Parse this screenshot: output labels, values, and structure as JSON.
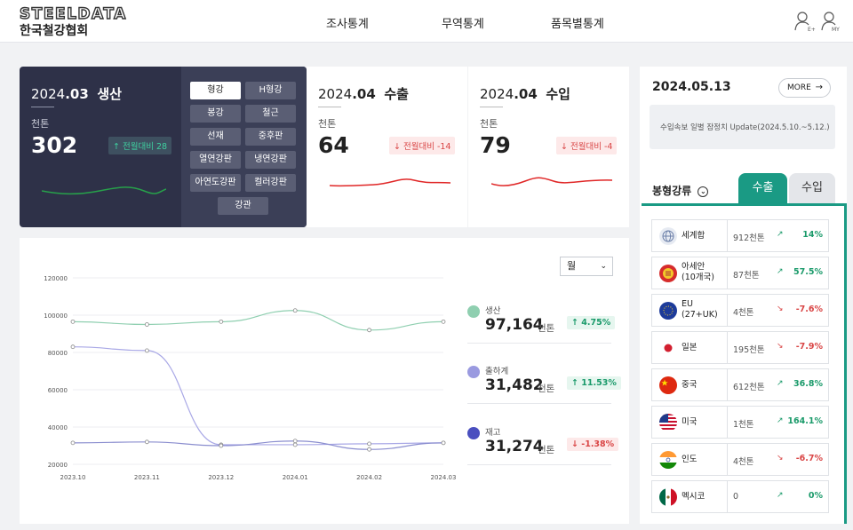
{
  "header": {
    "logo_title": "STEELDATA",
    "logo_subtitle": "한국철강협회",
    "nav": [
      "조사통계",
      "무역통계",
      "품목별통계"
    ],
    "icon_names": [
      "user-login-icon",
      "user-my-icon"
    ],
    "icon_labels": [
      "E+",
      "MY"
    ]
  },
  "production": {
    "period": "2024",
    "month": ".03",
    "label": "생산",
    "unit": "천톤",
    "value": "302",
    "delta": "↑ 전월대비 28",
    "chips": [
      "형강",
      "H형강",
      "봉강",
      "철근",
      "선재",
      "중후판",
      "열연강판",
      "냉연강판",
      "아연도강판",
      "컬러강판",
      "강관"
    ],
    "active_chip": "형강"
  },
  "export": {
    "period": "2024",
    "month": ".04",
    "label": "수출",
    "unit": "천톤",
    "value": "64",
    "delta": "↓ 전월대비 -14"
  },
  "import": {
    "period": "2024",
    "month": ".04",
    "label": "수입",
    "unit": "천톤",
    "value": "79",
    "delta": "↓ 전월대비 -4"
  },
  "chart_select": "월",
  "chart_data": {
    "type": "line",
    "x": [
      "2023.10",
      "2023.11",
      "2023.12",
      "2024.01",
      "2024.02",
      "2024.03"
    ],
    "ylim": [
      20000,
      120000
    ],
    "yticks": [
      "120000",
      "100000",
      "80000",
      "60000",
      "40000",
      "20000"
    ],
    "series": [
      {
        "name": "생산",
        "color": "#8fcfb0",
        "values": [
          96500,
          95000,
          96500,
          102500,
          92000,
          96500
        ]
      },
      {
        "name": "출하계",
        "color": "#a9a8e6",
        "values": [
          83000,
          81000,
          30500,
          30500,
          31000,
          31500
        ]
      },
      {
        "name": "재고",
        "color": "#8b8ecf",
        "values": [
          31500,
          32000,
          30000,
          32500,
          28000,
          31500
        ]
      }
    ]
  },
  "legend": [
    {
      "name": "생산",
      "value": "97,164",
      "unit": "천톤",
      "delta": "↑ 4.75%",
      "dir": "up",
      "color": "#8fcfb0"
    },
    {
      "name": "출하계",
      "value": "31,482",
      "unit": "천톤",
      "delta": "↑ 11.53%",
      "dir": "up",
      "color": "#9a9ae0"
    },
    {
      "name": "재고",
      "value": "31,274",
      "unit": "천톤",
      "delta": "↓ -1.38%",
      "dir": "down",
      "color": "#4a4fbf"
    }
  ],
  "side": {
    "date": "2024.05.13",
    "more": "MORE",
    "notice": "수입속보 일별 잠정치 Update(2024.5.10.~5.12.)",
    "sort_label": "봉형강류",
    "tabs": [
      "수출",
      "수입"
    ],
    "active_tab": "수출",
    "rows": [
      {
        "name": "세계합",
        "amount": "912천톤",
        "pct": "14%",
        "dir": "up",
        "flag": "world"
      },
      {
        "name": "아세안\n(10개국)",
        "amount": "87천톤",
        "pct": "57.5%",
        "dir": "up",
        "flag": "asean"
      },
      {
        "name": "EU\n(27+UK)",
        "amount": "4천톤",
        "pct": "-7.6%",
        "dir": "down",
        "flag": "eu"
      },
      {
        "name": "일본",
        "amount": "195천톤",
        "pct": "-7.9%",
        "dir": "down",
        "flag": "japan"
      },
      {
        "name": "중국",
        "amount": "612천톤",
        "pct": "36.8%",
        "dir": "up",
        "flag": "china"
      },
      {
        "name": "미국",
        "amount": "1천톤",
        "pct": "164.1%",
        "dir": "up",
        "flag": "usa"
      },
      {
        "name": "인도",
        "amount": "4천톤",
        "pct": "-6.7%",
        "dir": "down",
        "flag": "india"
      },
      {
        "name": "멕시코",
        "amount": "0",
        "pct": "0%",
        "dir": "up",
        "flag": "mexico"
      }
    ]
  }
}
